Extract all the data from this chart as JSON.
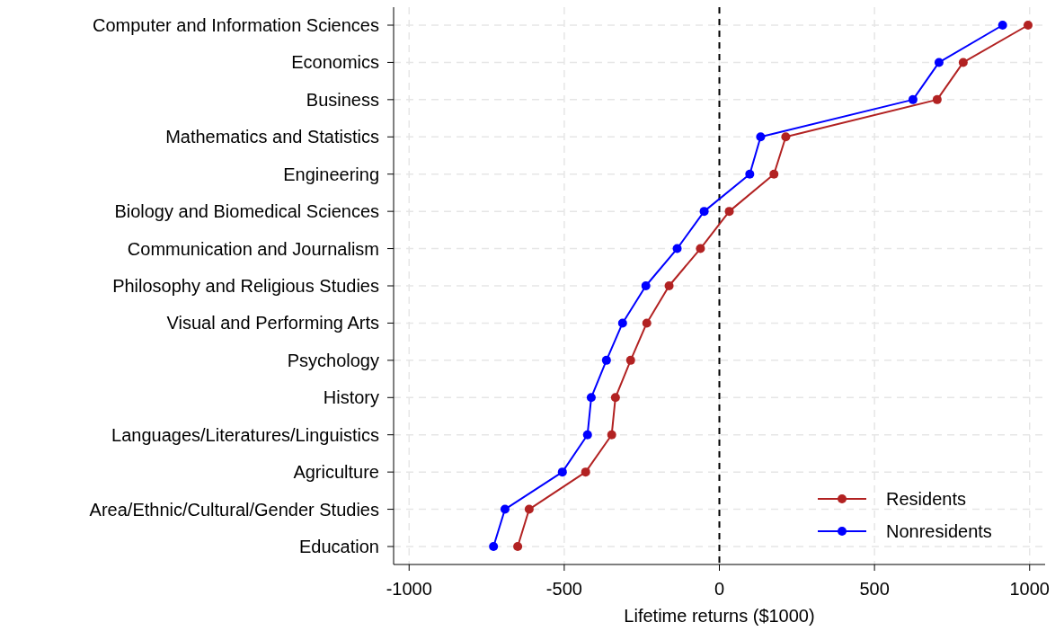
{
  "chart_data": {
    "type": "line",
    "orientation": "horizontal",
    "xlabel": "Lifetime returns ($1000)",
    "categories": [
      "Computer and Information Sciences",
      "Economics",
      "Business",
      "Mathematics and Statistics",
      "Engineering",
      "Biology and Biomedical Sciences",
      "Communication and Journalism",
      "Philosophy and Religious Studies",
      "Visual and Performing Arts",
      "Psychology",
      "History",
      "Languages/Literatures/Linguistics",
      "Agriculture",
      "Area/Ethnic/Cultural/Gender Studies",
      "Education"
    ],
    "series": [
      {
        "name": "Residents",
        "color": "#b22222",
        "values": [
          995,
          786,
          702,
          214,
          176,
          32,
          -61,
          -162,
          -234,
          -286,
          -335,
          -347,
          -431,
          -613,
          -650
        ]
      },
      {
        "name": "Nonresidents",
        "color": "#0000ff",
        "values": [
          913,
          708,
          624,
          133,
          98,
          -49,
          -136,
          -237,
          -312,
          -364,
          -413,
          -425,
          -506,
          -691,
          -728
        ]
      }
    ],
    "xlim": [
      -1050,
      1050
    ],
    "xticks": [
      -1000,
      -500,
      0,
      500,
      1000
    ],
    "ref_lines": [
      {
        "axis": "x",
        "value": 0,
        "color": "#000000",
        "line_style": "dashed"
      }
    ],
    "grid": true,
    "legend": "bottom right",
    "marker": "circle"
  }
}
